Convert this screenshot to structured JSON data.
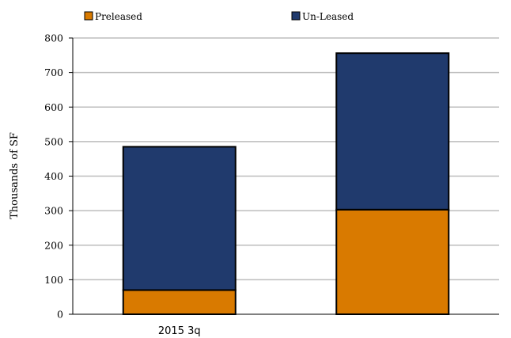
{
  "chart_data": {
    "type": "bar",
    "stacked": true,
    "categories": [
      "2015 3q",
      ""
    ],
    "series": [
      {
        "name": "Preleased",
        "values": [
          70,
          303
        ],
        "color": "#D97A00"
      },
      {
        "name": "Un-Leased",
        "values": [
          415,
          453
        ],
        "color": "#203A6D"
      }
    ],
    "ylabel": "Thousands of SF",
    "ylim": [
      0,
      800
    ],
    "yticks": [
      0,
      100,
      200,
      300,
      400,
      500,
      600,
      700,
      800
    ],
    "grid": true,
    "legend_position": "top"
  }
}
